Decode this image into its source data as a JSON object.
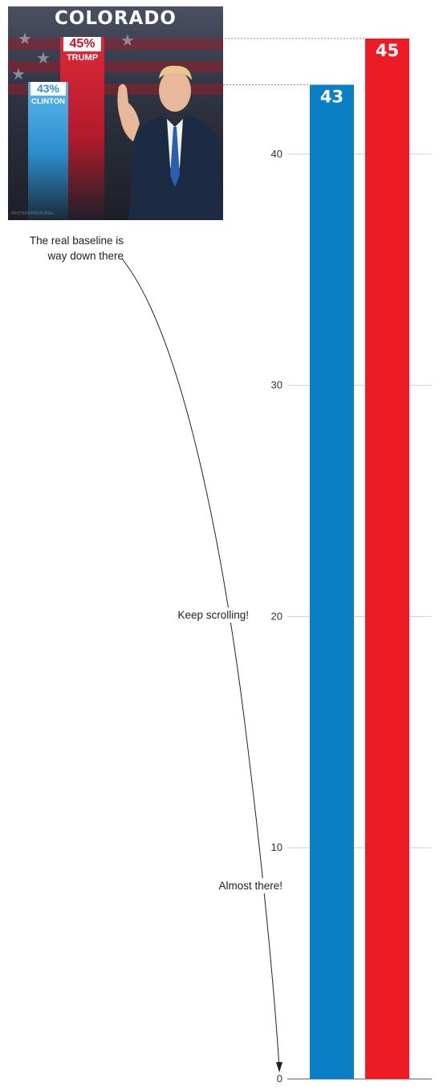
{
  "chart_data": {
    "type": "bar",
    "categories": [
      "Clinton",
      "Trump"
    ],
    "values": [
      43,
      45
    ],
    "colors": [
      "#0a7fc5",
      "#ed1c24"
    ],
    "ylim": [
      0,
      45
    ],
    "yticks": [
      0,
      10,
      20,
      30,
      40
    ],
    "grid": true,
    "title": "",
    "xlabel": "",
    "ylabel": "",
    "annotations": [
      {
        "lines": [
          "The real baseline is",
          "way down there"
        ]
      },
      {
        "lines": [
          "Keep scrolling!"
        ]
      },
      {
        "lines": [
          "Almost there!"
        ]
      }
    ]
  },
  "inset": {
    "title": "COLORADO",
    "trump_pct": "45%",
    "trump_name": "TRUMP",
    "clinton_pct": "43%",
    "clinton_name": "CLINTON",
    "credit": "REUTERS/IPSOS POLL"
  }
}
